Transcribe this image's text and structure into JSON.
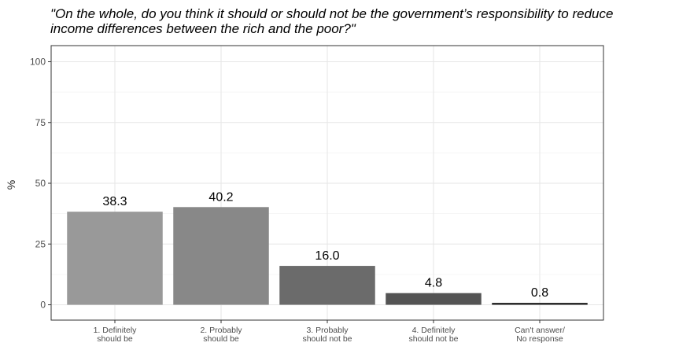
{
  "chart_data": {
    "type": "bar",
    "title_lines": [
      "\"On the whole, do you think it should or should not be the government’s responsibility to reduce",
      "income differences between the rich and the poor?\""
    ],
    "ylabel": "%",
    "ylim": [
      0,
      100
    ],
    "yticks": [
      "0",
      "25",
      "50",
      "75",
      "100"
    ],
    "categories": [
      [
        "1. Definitely",
        "should be"
      ],
      [
        "2. Probably",
        "should be"
      ],
      [
        "3. Probably",
        "should not be"
      ],
      [
        "4. Definitely",
        "should not be"
      ],
      [
        "Can't answer/",
        "No response"
      ]
    ],
    "values": [
      38.3,
      40.2,
      16.0,
      4.8,
      0.8
    ],
    "value_labels": [
      "38.3",
      "40.2",
      "16.0",
      "4.8",
      "0.8"
    ],
    "bar_colors": [
      "#999999",
      "#888888",
      "#6b6b6b",
      "#545454",
      "#2a2a2a"
    ],
    "grid": true
  }
}
